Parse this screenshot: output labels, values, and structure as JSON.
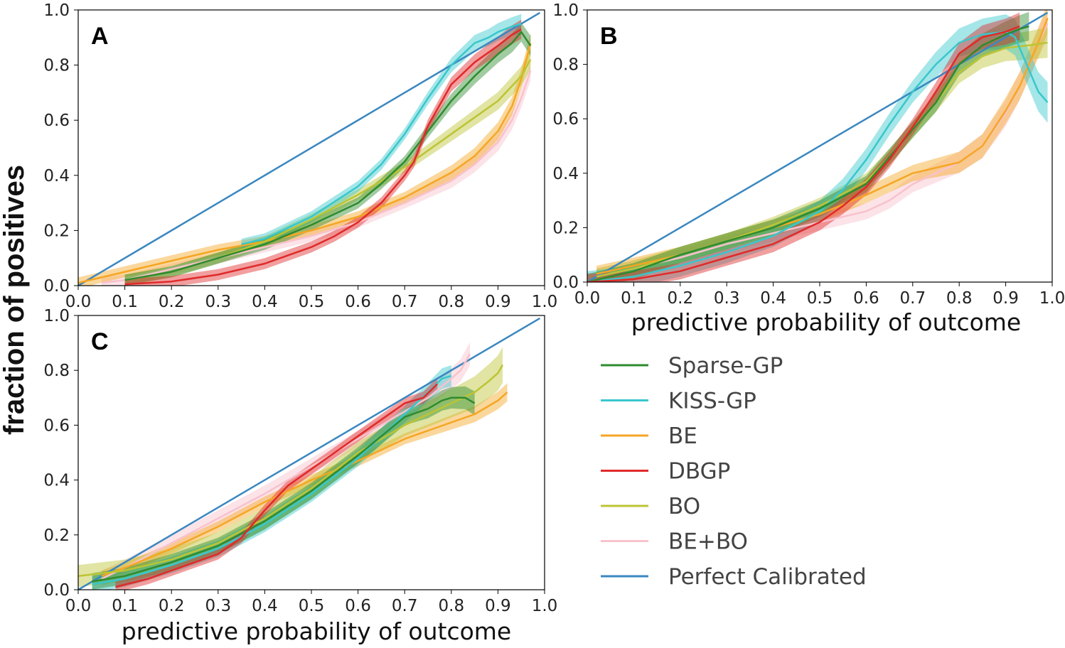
{
  "figure": {
    "ylabel": "fraction of positives"
  },
  "legend": [
    {
      "name": "Sparse-GP",
      "color": "#2e8b2e"
    },
    {
      "name": "KISS-GP",
      "color": "#38c7cc"
    },
    {
      "name": "BE",
      "color": "#f5a623"
    },
    {
      "name": "DBGP",
      "color": "#e02a2a"
    },
    {
      "name": "BO",
      "color": "#bcc434"
    },
    {
      "name": "BE+BO",
      "color": "#f8c2cc"
    },
    {
      "name": "Perfect Calibrated",
      "color": "#3a87c0"
    }
  ],
  "chart_data": [
    {
      "panel": "A",
      "type": "line",
      "title": "",
      "xlabel": "",
      "ylabel": "fraction of positives",
      "xlim": [
        0,
        1
      ],
      "ylim": [
        0,
        1
      ],
      "xticks": [
        "0.0",
        "0.1",
        "0.2",
        "0.3",
        "0.4",
        "0.5",
        "0.6",
        "0.7",
        "0.8",
        "0.9",
        "1.0"
      ],
      "yticks": [
        "0.0",
        "0.2",
        "0.4",
        "0.6",
        "0.8",
        "1.0"
      ],
      "series": [
        {
          "name": "Perfect Calibrated",
          "x": [
            0,
            0.99
          ],
          "y": [
            0,
            0.99
          ],
          "band": 0
        },
        {
          "name": "BE+BO",
          "x": [
            0.05,
            0.1,
            0.2,
            0.3,
            0.4,
            0.5,
            0.6,
            0.7,
            0.8,
            0.85,
            0.9,
            0.93,
            0.95,
            0.97
          ],
          "y": [
            0.01,
            0.02,
            0.06,
            0.1,
            0.14,
            0.18,
            0.23,
            0.3,
            0.38,
            0.44,
            0.52,
            0.6,
            0.68,
            0.78
          ],
          "band": 0.02
        },
        {
          "name": "BE",
          "x": [
            0.0,
            0.1,
            0.2,
            0.3,
            0.4,
            0.5,
            0.6,
            0.7,
            0.8,
            0.85,
            0.9,
            0.93,
            0.95,
            0.97
          ],
          "y": [
            0.01,
            0.05,
            0.09,
            0.13,
            0.16,
            0.2,
            0.25,
            0.32,
            0.41,
            0.47,
            0.56,
            0.65,
            0.75,
            0.88
          ],
          "band": 0.02
        },
        {
          "name": "BO",
          "x": [
            0.1,
            0.2,
            0.3,
            0.4,
            0.5,
            0.6,
            0.7,
            0.75,
            0.8,
            0.85,
            0.9,
            0.95,
            0.97
          ],
          "y": [
            0.02,
            0.05,
            0.1,
            0.16,
            0.24,
            0.33,
            0.43,
            0.49,
            0.55,
            0.61,
            0.67,
            0.76,
            0.82
          ],
          "band": 0.02
        },
        {
          "name": "KISS-GP",
          "x": [
            0.35,
            0.4,
            0.5,
            0.6,
            0.65,
            0.7,
            0.75,
            0.8,
            0.85,
            0.88,
            0.9,
            0.93,
            0.95
          ],
          "y": [
            0.15,
            0.17,
            0.25,
            0.36,
            0.44,
            0.55,
            0.68,
            0.8,
            0.88,
            0.9,
            0.92,
            0.94,
            0.95
          ],
          "band": 0.02
        },
        {
          "name": "Sparse-GP",
          "x": [
            0.1,
            0.2,
            0.3,
            0.4,
            0.5,
            0.6,
            0.65,
            0.7,
            0.75,
            0.8,
            0.85,
            0.9,
            0.93,
            0.95,
            0.97
          ],
          "y": [
            0.02,
            0.05,
            0.1,
            0.15,
            0.22,
            0.3,
            0.37,
            0.45,
            0.56,
            0.67,
            0.76,
            0.84,
            0.88,
            0.92,
            0.87
          ],
          "band": 0.02
        },
        {
          "name": "DBGP",
          "x": [
            0.1,
            0.2,
            0.3,
            0.4,
            0.5,
            0.55,
            0.6,
            0.65,
            0.7,
            0.72,
            0.75,
            0.8,
            0.85,
            0.9,
            0.93,
            0.95
          ],
          "y": [
            0.005,
            0.015,
            0.04,
            0.08,
            0.14,
            0.18,
            0.23,
            0.3,
            0.4,
            0.45,
            0.58,
            0.73,
            0.81,
            0.87,
            0.91,
            0.93
          ],
          "band": 0.02
        }
      ]
    },
    {
      "panel": "B",
      "type": "line",
      "title": "",
      "xlabel": "predictive probability of outcome",
      "ylabel": "",
      "xlim": [
        0,
        1
      ],
      "ylim": [
        0,
        1
      ],
      "xticks": [
        "0.0",
        "0.1",
        "0.2",
        "0.3",
        "0.4",
        "0.5",
        "0.6",
        "0.7",
        "0.8",
        "0.9",
        "1.0"
      ],
      "yticks": [
        "0.0",
        "0.2",
        "0.4",
        "0.6",
        "0.8",
        "1.0"
      ],
      "series": [
        {
          "name": "Perfect Calibrated",
          "x": [
            0,
            0.99
          ],
          "y": [
            0,
            0.99
          ],
          "band": 0
        },
        {
          "name": "BE+BO",
          "x": [
            0.02,
            0.1,
            0.2,
            0.3,
            0.4,
            0.5,
            0.6,
            0.65,
            0.7,
            0.8,
            0.85,
            0.9,
            0.93,
            0.95,
            0.97,
            0.99
          ],
          "y": [
            0.02,
            0.05,
            0.09,
            0.14,
            0.18,
            0.22,
            0.26,
            0.3,
            0.36,
            0.44,
            0.5,
            0.62,
            0.72,
            0.8,
            0.88,
            0.95
          ],
          "band": 0.03
        },
        {
          "name": "BE",
          "x": [
            0.02,
            0.1,
            0.2,
            0.3,
            0.4,
            0.5,
            0.6,
            0.65,
            0.7,
            0.8,
            0.85,
            0.9,
            0.93,
            0.95,
            0.97,
            0.99
          ],
          "y": [
            0.03,
            0.06,
            0.1,
            0.15,
            0.2,
            0.25,
            0.32,
            0.36,
            0.4,
            0.44,
            0.5,
            0.63,
            0.72,
            0.8,
            0.88,
            0.97
          ],
          "band": 0.03
        },
        {
          "name": "BO",
          "x": [
            0.02,
            0.1,
            0.2,
            0.3,
            0.4,
            0.5,
            0.6,
            0.65,
            0.7,
            0.75,
            0.8,
            0.85,
            0.9,
            0.95,
            0.99
          ],
          "y": [
            0.02,
            0.05,
            0.1,
            0.15,
            0.21,
            0.28,
            0.37,
            0.46,
            0.56,
            0.66,
            0.77,
            0.83,
            0.86,
            0.87,
            0.88
          ],
          "band": 0.03
        },
        {
          "name": "KISS-GP",
          "x": [
            0.0,
            0.1,
            0.2,
            0.3,
            0.4,
            0.5,
            0.55,
            0.6,
            0.65,
            0.7,
            0.75,
            0.8,
            0.85,
            0.9,
            0.92,
            0.95,
            0.97,
            0.99
          ],
          "y": [
            0.0,
            0.02,
            0.06,
            0.11,
            0.17,
            0.26,
            0.34,
            0.45,
            0.58,
            0.7,
            0.8,
            0.88,
            0.91,
            0.92,
            0.9,
            0.78,
            0.7,
            0.66
          ],
          "band": 0.04
        },
        {
          "name": "Sparse-GP",
          "x": [
            0.0,
            0.1,
            0.2,
            0.3,
            0.4,
            0.5,
            0.6,
            0.65,
            0.7,
            0.75,
            0.8,
            0.85,
            0.9,
            0.93,
            0.95
          ],
          "y": [
            0.0,
            0.04,
            0.1,
            0.15,
            0.2,
            0.27,
            0.36,
            0.46,
            0.56,
            0.66,
            0.8,
            0.87,
            0.91,
            0.93,
            0.94
          ],
          "band": 0.03
        },
        {
          "name": "DBGP",
          "x": [
            0.0,
            0.1,
            0.2,
            0.3,
            0.4,
            0.5,
            0.55,
            0.6,
            0.65,
            0.7,
            0.75,
            0.8,
            0.85,
            0.9,
            0.93
          ],
          "y": [
            0.0,
            0.01,
            0.04,
            0.09,
            0.14,
            0.22,
            0.28,
            0.35,
            0.45,
            0.57,
            0.7,
            0.84,
            0.9,
            0.92,
            0.94
          ],
          "band": 0.03
        }
      ]
    },
    {
      "panel": "C",
      "type": "line",
      "title": "",
      "xlabel": "predictive probability of outcome",
      "ylabel": "",
      "xlim": [
        0,
        1
      ],
      "ylim": [
        0,
        1
      ],
      "xticks": [
        "0.0",
        "0.1",
        "0.2",
        "0.3",
        "0.4",
        "0.5",
        "0.6",
        "0.7",
        "0.8",
        "0.9",
        "1.0"
      ],
      "yticks": [
        "0.0",
        "0.2",
        "0.4",
        "0.6",
        "0.8",
        "1.0"
      ],
      "series": [
        {
          "name": "Perfect Calibrated",
          "x": [
            0,
            0.99
          ],
          "y": [
            0,
            0.99
          ],
          "band": 0
        },
        {
          "name": "BE+BO",
          "x": [
            0.05,
            0.1,
            0.2,
            0.3,
            0.4,
            0.5,
            0.6,
            0.7,
            0.75,
            0.8,
            0.82,
            0.84
          ],
          "y": [
            0.04,
            0.08,
            0.17,
            0.26,
            0.35,
            0.45,
            0.55,
            0.65,
            0.7,
            0.77,
            0.8,
            0.86
          ],
          "band": 0.03
        },
        {
          "name": "BE",
          "x": [
            0.05,
            0.1,
            0.2,
            0.3,
            0.4,
            0.5,
            0.6,
            0.7,
            0.8,
            0.85,
            0.9,
            0.92
          ],
          "y": [
            0.05,
            0.08,
            0.15,
            0.23,
            0.32,
            0.4,
            0.47,
            0.55,
            0.61,
            0.64,
            0.69,
            0.72
          ],
          "band": 0.02
        },
        {
          "name": "BO",
          "x": [
            0.0,
            0.1,
            0.2,
            0.3,
            0.4,
            0.5,
            0.6,
            0.7,
            0.75,
            0.8,
            0.85,
            0.88,
            0.9,
            0.91
          ],
          "y": [
            0.05,
            0.07,
            0.11,
            0.17,
            0.26,
            0.37,
            0.5,
            0.6,
            0.64,
            0.68,
            0.72,
            0.76,
            0.79,
            0.82
          ],
          "band": 0.04
        },
        {
          "name": "KISS-GP",
          "x": [
            0.03,
            0.1,
            0.2,
            0.3,
            0.4,
            0.5,
            0.6,
            0.65,
            0.7,
            0.75,
            0.78,
            0.8
          ],
          "y": [
            0.02,
            0.04,
            0.09,
            0.15,
            0.24,
            0.35,
            0.48,
            0.56,
            0.64,
            0.72,
            0.77,
            0.78
          ],
          "band": 0.03
        },
        {
          "name": "Sparse-GP",
          "x": [
            0.03,
            0.1,
            0.2,
            0.3,
            0.4,
            0.5,
            0.6,
            0.65,
            0.7,
            0.75,
            0.78,
            0.8,
            0.83,
            0.85
          ],
          "y": [
            0.03,
            0.05,
            0.1,
            0.16,
            0.25,
            0.36,
            0.49,
            0.56,
            0.63,
            0.66,
            0.69,
            0.7,
            0.7,
            0.68
          ],
          "band": 0.03
        },
        {
          "name": "DBGP",
          "x": [
            0.08,
            0.15,
            0.2,
            0.3,
            0.35,
            0.4,
            0.45,
            0.5,
            0.6,
            0.7,
            0.74,
            0.77
          ],
          "y": [
            0.01,
            0.04,
            0.07,
            0.13,
            0.19,
            0.29,
            0.38,
            0.44,
            0.56,
            0.68,
            0.7,
            0.75
          ],
          "band": 0.02
        }
      ]
    }
  ]
}
